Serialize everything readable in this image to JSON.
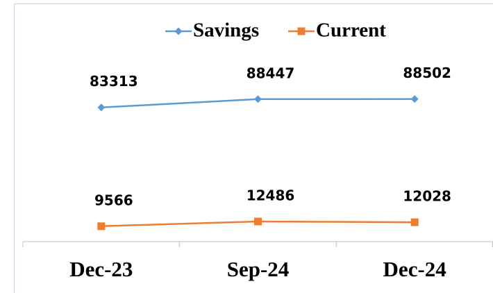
{
  "chart_data": {
    "type": "line",
    "categories": [
      "Dec-23",
      "Sep-24",
      "Dec-24"
    ],
    "series": [
      {
        "name": "Savings",
        "color": "#5b9bd5",
        "marker": "diamond",
        "values": [
          83313,
          88447,
          88502
        ]
      },
      {
        "name": "Current",
        "color": "#ed7d31",
        "marker": "square",
        "values": [
          9566,
          12486,
          12028
        ]
      }
    ],
    "ylim": [
      0,
      100000
    ],
    "legend": "top",
    "grid": false,
    "data_labels": true
  }
}
